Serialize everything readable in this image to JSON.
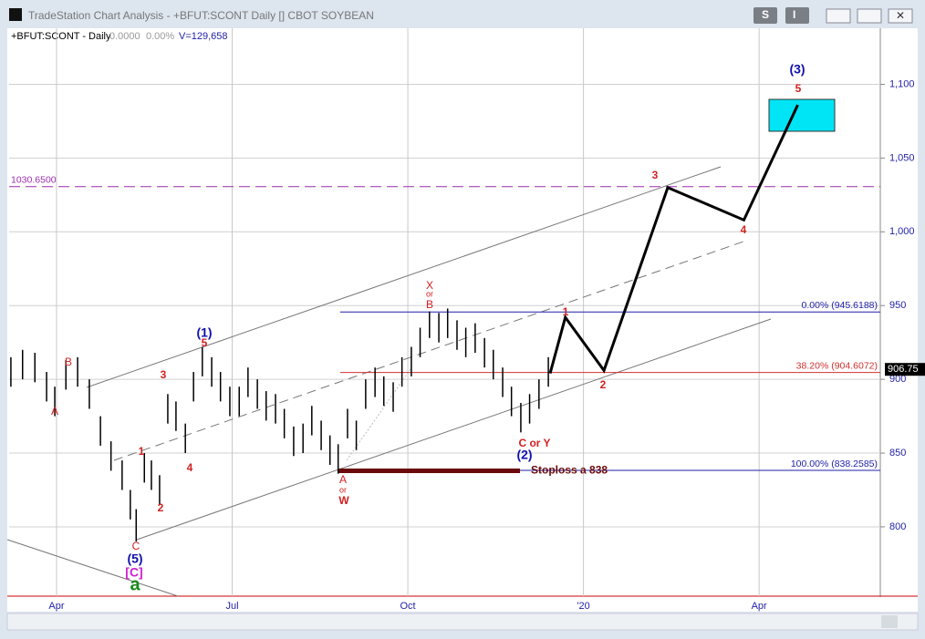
{
  "window": {
    "title": "TradeStation Chart Analysis - +BFUT:SCONT Daily [] CBOT SOYBEAN",
    "buttons": [
      "S",
      "I"
    ]
  },
  "chart_data": {
    "type": "ohlc",
    "symbol": "+BFUT:SCONT - Daily",
    "change": "0.0000",
    "change_pct": "0.00%",
    "volume": "V=129,658",
    "xlim": [
      -0.81,
      14.07
    ],
    "ylim": [
      753,
      1138
    ],
    "xticks": [
      {
        "value": 0,
        "label": "Apr"
      },
      {
        "value": 3,
        "label": "Jul"
      },
      {
        "value": 6,
        "label": "Oct"
      },
      {
        "value": 9,
        "label": "'20"
      },
      {
        "value": 12,
        "label": "Apr"
      }
    ],
    "yticks": [
      800,
      850,
      900,
      950,
      {
        "value": 1000,
        "label": "1,000"
      },
      {
        "value": 1050,
        "label": "1,050"
      },
      {
        "value": 1100,
        "label": "1,100"
      }
    ],
    "grid": true,
    "bar_color": "#000000",
    "bars": {
      "x": [
        -0.78,
        -0.58,
        -0.37,
        -0.17,
        -0.03,
        0.16,
        0.36,
        0.56,
        0.75,
        0.93,
        1.12,
        1.26,
        1.36,
        1.5,
        1.62,
        1.76,
        1.9,
        2.04,
        2.2,
        2.34,
        2.49,
        2.65,
        2.8,
        2.96,
        3.12,
        3.27,
        3.43,
        3.58,
        3.74,
        3.89,
        4.05,
        4.21,
        4.36,
        4.52,
        4.67,
        4.81,
        4.97,
        5.12,
        5.28,
        5.44,
        5.59,
        5.75,
        5.9,
        6.06,
        6.21,
        6.37,
        6.53,
        6.68,
        6.84,
        6.99,
        7.15,
        7.31,
        7.46,
        7.62,
        7.77,
        7.93,
        8.08,
        8.24,
        8.4
      ],
      "high": [
        915,
        920,
        918,
        905,
        895,
        913,
        915,
        900,
        875,
        858,
        845,
        825,
        812,
        850,
        845,
        835,
        890,
        885,
        870,
        905,
        922,
        915,
        905,
        895,
        895,
        908,
        900,
        892,
        890,
        880,
        868,
        870,
        882,
        872,
        862,
        856,
        880,
        872,
        900,
        908,
        902,
        898,
        915,
        922,
        935,
        946,
        945,
        948,
        940,
        935,
        938,
        928,
        920,
        908,
        895,
        884,
        890,
        900,
        915
      ],
      "low": [
        895,
        900,
        898,
        885,
        875,
        893,
        895,
        880,
        855,
        838,
        825,
        805,
        790,
        830,
        825,
        815,
        870,
        865,
        850,
        885,
        902,
        895,
        885,
        875,
        875,
        888,
        880,
        872,
        870,
        860,
        848,
        850,
        862,
        852,
        842,
        836,
        860,
        852,
        880,
        888,
        882,
        878,
        895,
        902,
        915,
        928,
        925,
        928,
        920,
        915,
        918,
        908,
        900,
        888,
        875,
        864,
        870,
        880,
        895
      ]
    },
    "projection": {
      "color": "#000000",
      "x": [
        8.43,
        8.69,
        9.35,
        10.44,
        11.74,
        12.66
      ],
      "values": [
        904,
        942,
        906,
        1030,
        1008,
        1086
      ]
    },
    "levels": [
      {
        "value": 1030.65,
        "label": "1030.6500",
        "color": "#9b2fae"
      },
      {
        "value": 945.6188,
        "label": "0.00% (945.6188)",
        "color": "#1f1fa8"
      },
      {
        "value": 904.6072,
        "label": "38.20% (904.6072)",
        "color": "#d03030"
      },
      {
        "value": 838.2585,
        "label": "100.00% (838.2585)",
        "color": "#1f1fa8"
      }
    ],
    "stoploss": {
      "value": 838,
      "label": "Stoploss a 838",
      "color": "#6b0a0a"
    },
    "last_price": {
      "value": 906.75,
      "label": "906.75"
    },
    "annotations": [
      "(3)",
      "5",
      "3",
      "4",
      "1",
      "2",
      "X",
      "or",
      "B",
      "(1)",
      "5",
      "3",
      "B",
      "A",
      "1",
      "4",
      "2",
      "C",
      "(5)",
      "[C]",
      "a",
      "A",
      "or",
      "W",
      "C or Y",
      "(2)"
    ]
  }
}
